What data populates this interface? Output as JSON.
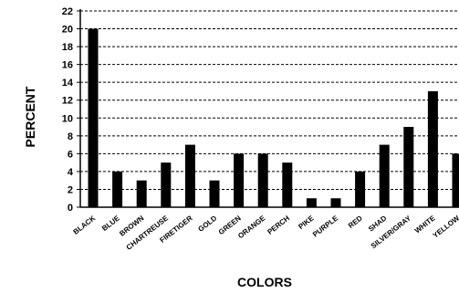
{
  "chart_data": {
    "type": "bar",
    "title": "",
    "xlabel": "COLORS",
    "ylabel": "PERCENT",
    "ylim": [
      0,
      22
    ],
    "yticks": [
      0,
      2,
      4,
      6,
      8,
      10,
      12,
      14,
      16,
      18,
      20,
      22
    ],
    "grid": "horizontal dashed",
    "bar_color": "#000000",
    "categories": [
      "BLACK",
      "BLUE",
      "BROWN",
      "CHARTREUSE",
      "FIRETIGER",
      "GOLD",
      "GREEN",
      "ORANGE",
      "PERCH",
      "PIKE",
      "PURPLE",
      "RED",
      "SHAD",
      "SILVER/GRAY",
      "WHITE",
      "YELLOW"
    ],
    "values": [
      20,
      4,
      3,
      5,
      7,
      3,
      6,
      6,
      5,
      1,
      1,
      4,
      7,
      9,
      13,
      6
    ]
  }
}
